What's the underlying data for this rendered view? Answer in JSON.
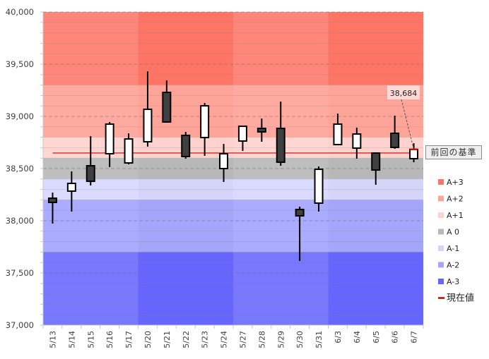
{
  "chart_data": {
    "type": "candlestick",
    "title": "",
    "xlabel": "",
    "ylabel": "",
    "ylim": [
      37000,
      40000
    ],
    "y_major_step": 500,
    "y_minor_step": 100,
    "yticks": [
      "37,000",
      "37,500",
      "38,000",
      "38,500",
      "39,000",
      "39,500",
      "40,000"
    ],
    "ytick_values": [
      37000,
      37500,
      38000,
      38500,
      39000,
      39500,
      40000
    ],
    "grid": true,
    "categories": [
      "5/13",
      "5/14",
      "5/15",
      "5/16",
      "5/17",
      "5/20",
      "5/21",
      "5/22",
      "5/23",
      "5/24",
      "5/27",
      "5/28",
      "5/29",
      "5/30",
      "5/31",
      "6/3",
      "6/4",
      "6/5",
      "6/6",
      "6/7"
    ],
    "week_groups": [
      [
        0,
        4
      ],
      [
        5,
        9
      ],
      [
        10,
        14
      ],
      [
        15,
        19
      ]
    ],
    "candles": [
      {
        "date": "5/13",
        "open": 38216,
        "high": 38270,
        "low": 37973,
        "close": 38176
      },
      {
        "date": "5/14",
        "open": 38284,
        "high": 38473,
        "low": 38088,
        "close": 38358
      },
      {
        "date": "5/15",
        "open": 38527,
        "high": 38811,
        "low": 38338,
        "close": 38378
      },
      {
        "date": "5/16",
        "open": 38642,
        "high": 38946,
        "low": 38514,
        "close": 38926
      },
      {
        "date": "5/17",
        "open": 38554,
        "high": 38838,
        "low": 38541,
        "close": 38784
      },
      {
        "date": "5/20",
        "open": 38757,
        "high": 39432,
        "low": 38710,
        "close": 39068
      },
      {
        "date": "5/21",
        "open": 39230,
        "high": 39345,
        "low": 38946,
        "close": 38946
      },
      {
        "date": "5/22",
        "open": 38818,
        "high": 38851,
        "low": 38595,
        "close": 38615
      },
      {
        "date": "5/23",
        "open": 38797,
        "high": 39128,
        "low": 38622,
        "close": 39101
      },
      {
        "date": "5/24",
        "open": 38500,
        "high": 38736,
        "low": 38372,
        "close": 38642
      },
      {
        "date": "5/27",
        "open": 38764,
        "high": 38905,
        "low": 38669,
        "close": 38905
      },
      {
        "date": "5/28",
        "open": 38885,
        "high": 38980,
        "low": 38757,
        "close": 38851
      },
      {
        "date": "5/29",
        "open": 38885,
        "high": 39142,
        "low": 38527,
        "close": 38561
      },
      {
        "date": "5/30",
        "open": 38108,
        "high": 38135,
        "low": 37615,
        "close": 38047
      },
      {
        "date": "5/31",
        "open": 38169,
        "high": 38520,
        "low": 38088,
        "close": 38493
      },
      {
        "date": "6/3",
        "open": 38730,
        "high": 39027,
        "low": 38730,
        "close": 38926
      },
      {
        "date": "6/4",
        "open": 38696,
        "high": 38892,
        "low": 38595,
        "close": 38831
      },
      {
        "date": "6/5",
        "open": 38649,
        "high": 38649,
        "low": 38345,
        "close": 38486
      },
      {
        "date": "6/6",
        "open": 38838,
        "high": 39007,
        "low": 38689,
        "close": 38703
      },
      {
        "date": "6/7",
        "open": 38595,
        "high": 38743,
        "low": 38561,
        "close": 38684
      }
    ],
    "zones": [
      {
        "name": "A+3",
        "from": 39300,
        "to": 40000,
        "color": "#FF8679",
        "color_alt": "#FF7565"
      },
      {
        "name": "A+2",
        "from": 38800,
        "to": 39300,
        "color": "#FFAAA1",
        "color_alt": "#FFA499"
      },
      {
        "name": "A+1",
        "from": 38600,
        "to": 38800,
        "color": "#FFD6D2",
        "color_alt": "#FFD2CD"
      },
      {
        "name": "A 0",
        "from": 38400,
        "to": 38600,
        "color": "#BEBEBE",
        "color_alt": "#B8B8B8"
      },
      {
        "name": "A-1",
        "from": 38200,
        "to": 38400,
        "color": "#DADAFF",
        "color_alt": "#D5D5FA"
      },
      {
        "name": "A-2",
        "from": 37700,
        "to": 38200,
        "color": "#ABABFF",
        "color_alt": "#A5A5FA"
      },
      {
        "name": "A-3",
        "from": 37000,
        "to": 37700,
        "color": "#7878FF",
        "color_alt": "#6666FF"
      }
    ],
    "current_value_line": {
      "value": 38649,
      "start_index": 0,
      "end_index": 19,
      "color": "#CC0000"
    },
    "legend": {
      "placement": "right",
      "items": [
        {
          "label": "A+3",
          "color": "#FF7565",
          "kind": "box"
        },
        {
          "label": "A+2",
          "color": "#FFA499",
          "kind": "box"
        },
        {
          "label": "A+1",
          "color": "#FFD2CD",
          "kind": "box"
        },
        {
          "label": "A 0",
          "color": "#B8B8B8",
          "kind": "box"
        },
        {
          "label": "A-1",
          "color": "#D5D5FA",
          "kind": "box"
        },
        {
          "label": "A-2",
          "color": "#A5A5FA",
          "kind": "box"
        },
        {
          "label": "A-3",
          "color": "#6666FF",
          "kind": "box"
        },
        {
          "label": "現在値",
          "color": "#CC0000",
          "kind": "line"
        }
      ]
    },
    "annotations": {
      "last_price_label": "38,684",
      "last_price_value": 38684,
      "reference_label": "前回の基準"
    },
    "colors": {
      "up_body": "#FFFFFF",
      "down_body": "#404040",
      "wick": "#000000",
      "major_grid": "#7a7a7a",
      "minor_grid": "#909090"
    }
  }
}
